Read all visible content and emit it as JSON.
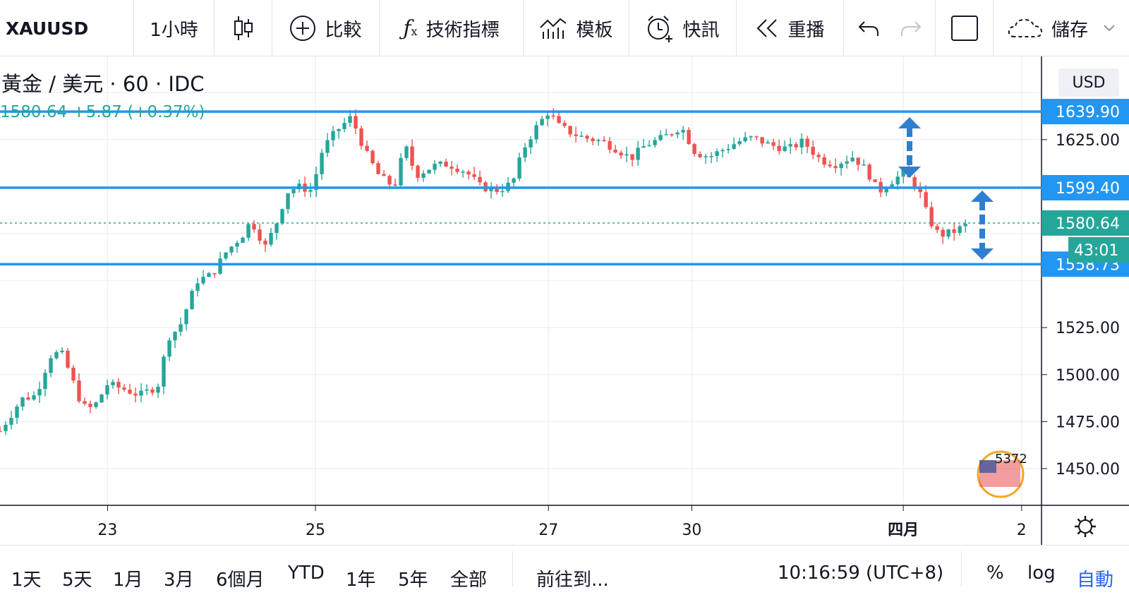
{
  "toolbar": {
    "symbol": "XAUUSD",
    "interval": "1小時",
    "compare_label": "比較",
    "indicators_label": "技術指標",
    "templates_label": "模板",
    "alerts_label": "快訊",
    "replay_label": "重播",
    "save_label": "儲存"
  },
  "legend": {
    "title": "黃金 / 美元 · 60 · IDC",
    "price_change": "1580.64 +5.87 (+0.37%)"
  },
  "currency": "USD",
  "countdown": "43:01",
  "watermark_text": "5372",
  "colors": {
    "up": "#26a69a",
    "down": "#ef5350",
    "hline": "#2196f3",
    "last_price": "#26a69a",
    "arrow": "#2f7fd0"
  },
  "chart_data": {
    "type": "candlestick",
    "title": "黃金 / 美元 · 60 · IDC",
    "x_ticks": [
      "23",
      "25",
      "27",
      "30",
      "四月",
      "2"
    ],
    "y_ticks": [
      1450,
      1475,
      1500,
      1525,
      1625
    ],
    "ylim": [
      1437,
      1665
    ],
    "last_price": 1580.64,
    "change": "+5.87 (+0.37%)",
    "horizontal_lines": [
      {
        "value": 1639.9,
        "label": "1639.90"
      },
      {
        "value": 1599.4,
        "label": "1599.40"
      },
      {
        "value": 1558.73,
        "label": "1558.73"
      }
    ],
    "last_price_label": "1580.64",
    "price_path": [
      {
        "x": 0.0,
        "price": 1470
      },
      {
        "x": 0.6,
        "price": 1487
      },
      {
        "x": 1.0,
        "price": 1489
      },
      {
        "x": 1.4,
        "price": 1510
      },
      {
        "x": 1.7,
        "price": 1512
      },
      {
        "x": 1.9,
        "price": 1503
      },
      {
        "x": 2.3,
        "price": 1483
      },
      {
        "x": 2.6,
        "price": 1482
      },
      {
        "x": 3.0,
        "price": 1495
      },
      {
        "x": 3.5,
        "price": 1492
      },
      {
        "x": 3.9,
        "price": 1489
      },
      {
        "x": 4.4,
        "price": 1494
      },
      {
        "x": 4.7,
        "price": 1520
      },
      {
        "x": 5.0,
        "price": 1525
      },
      {
        "x": 5.5,
        "price": 1550
      },
      {
        "x": 5.9,
        "price": 1553
      },
      {
        "x": 6.3,
        "price": 1565
      },
      {
        "x": 6.8,
        "price": 1575
      },
      {
        "x": 7.0,
        "price": 1582
      },
      {
        "x": 7.4,
        "price": 1568
      },
      {
        "x": 7.7,
        "price": 1580
      },
      {
        "x": 8.0,
        "price": 1597
      },
      {
        "x": 8.3,
        "price": 1600
      },
      {
        "x": 8.7,
        "price": 1598
      },
      {
        "x": 9.0,
        "price": 1620
      },
      {
        "x": 9.4,
        "price": 1630
      },
      {
        "x": 9.8,
        "price": 1637
      },
      {
        "x": 10.2,
        "price": 1618
      },
      {
        "x": 10.6,
        "price": 1605
      },
      {
        "x": 11.0,
        "price": 1600
      },
      {
        "x": 11.3,
        "price": 1622
      },
      {
        "x": 11.6,
        "price": 1606
      },
      {
        "x": 12.1,
        "price": 1611
      },
      {
        "x": 12.5,
        "price": 1612
      },
      {
        "x": 13.0,
        "price": 1608
      },
      {
        "x": 13.4,
        "price": 1600
      },
      {
        "x": 13.9,
        "price": 1598
      },
      {
        "x": 14.3,
        "price": 1602
      },
      {
        "x": 14.6,
        "price": 1620
      },
      {
        "x": 14.9,
        "price": 1630
      },
      {
        "x": 15.3,
        "price": 1640
      },
      {
        "x": 15.6,
        "price": 1632
      },
      {
        "x": 16.0,
        "price": 1628
      },
      {
        "x": 16.3,
        "price": 1626
      },
      {
        "x": 16.8,
        "price": 1624
      },
      {
        "x": 17.2,
        "price": 1620
      },
      {
        "x": 17.6,
        "price": 1615
      },
      {
        "x": 18.0,
        "price": 1622
      },
      {
        "x": 18.5,
        "price": 1626
      },
      {
        "x": 19.0,
        "price": 1632
      },
      {
        "x": 19.4,
        "price": 1618
      },
      {
        "x": 19.8,
        "price": 1616
      },
      {
        "x": 20.2,
        "price": 1620
      },
      {
        "x": 20.6,
        "price": 1624
      },
      {
        "x": 21.0,
        "price": 1626
      },
      {
        "x": 21.5,
        "price": 1622
      },
      {
        "x": 22.0,
        "price": 1620
      },
      {
        "x": 22.4,
        "price": 1624
      },
      {
        "x": 22.9,
        "price": 1614
      },
      {
        "x": 23.3,
        "price": 1612
      },
      {
        "x": 23.8,
        "price": 1616
      },
      {
        "x": 24.2,
        "price": 1608
      },
      {
        "x": 24.5,
        "price": 1597
      },
      {
        "x": 24.8,
        "price": 1602
      },
      {
        "x": 25.2,
        "price": 1607
      },
      {
        "x": 25.6,
        "price": 1600
      },
      {
        "x": 25.9,
        "price": 1583
      },
      {
        "x": 26.2,
        "price": 1574
      },
      {
        "x": 26.6,
        "price": 1576
      },
      {
        "x": 27.0,
        "price": 1580
      }
    ],
    "x_tick_positions": {
      "23": 3.0,
      "25": 8.8,
      "27": 15.3,
      "30": 19.3,
      "四月": 25.2,
      "2": 28.5
    }
  },
  "time_ranges": [
    "1天",
    "5天",
    "1月",
    "3月",
    "6個月",
    "YTD",
    "1年",
    "5年",
    "全部"
  ],
  "goto_label": "前往到...",
  "clock": "10:16:59 (UTC+8)",
  "scale_options": {
    "percent": "%",
    "log": "log",
    "auto": "自動"
  }
}
